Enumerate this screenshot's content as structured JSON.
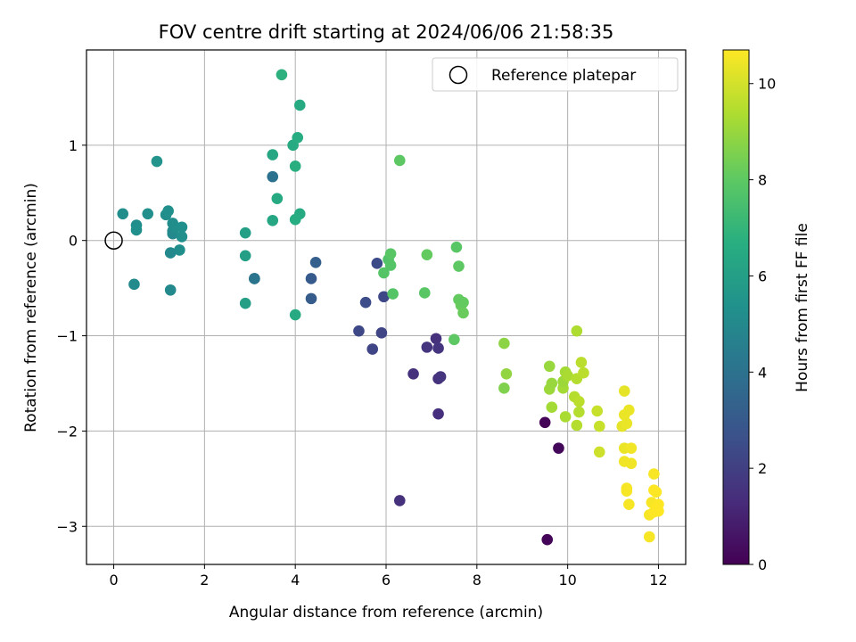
{
  "chart_data": {
    "type": "scatter",
    "title": "FOV centre drift starting at 2024/06/06 21:58:35",
    "xlabel": "Angular distance from reference (arcmin)",
    "ylabel": "Rotation from reference (arcmin)",
    "xlim": [
      -0.6,
      12.6
    ],
    "ylim": [
      -3.4,
      2.0
    ],
    "xticks": [
      "0",
      "2",
      "4",
      "6",
      "8",
      "10",
      "12"
    ],
    "xtick_values": [
      0,
      2,
      4,
      6,
      8,
      10,
      12
    ],
    "yticks": [
      "1",
      "0",
      "−1",
      "−2",
      "−3"
    ],
    "ytick_values": [
      1,
      0,
      -1,
      -2,
      -3
    ],
    "grid": true,
    "legend": {
      "placement": "top-right",
      "entries": [
        "Reference platepar"
      ]
    },
    "reference_point": {
      "x": 0,
      "y": 0
    },
    "colorbar": {
      "label": "Hours from first FF file",
      "range": [
        0,
        10.7
      ],
      "ticks": [
        "0",
        "2",
        "4",
        "6",
        "8",
        "10"
      ],
      "tick_values": [
        0,
        2,
        4,
        6,
        8,
        10
      ],
      "colormap": "viridis"
    },
    "points": [
      {
        "x": 0.2,
        "y": 0.28,
        "c": 5.2
      },
      {
        "x": 0.5,
        "y": 0.16,
        "c": 5.2
      },
      {
        "x": 0.5,
        "y": 0.11,
        "c": 5.3
      },
      {
        "x": 0.75,
        "y": 0.28,
        "c": 5.3
      },
      {
        "x": 0.45,
        "y": -0.46,
        "c": 5.1
      },
      {
        "x": 0.95,
        "y": 0.83,
        "c": 5.5
      },
      {
        "x": 1.15,
        "y": 0.27,
        "c": 5.2
      },
      {
        "x": 1.2,
        "y": 0.31,
        "c": 5.3
      },
      {
        "x": 1.3,
        "y": 0.18,
        "c": 5.2
      },
      {
        "x": 1.3,
        "y": 0.1,
        "c": 5.1
      },
      {
        "x": 1.3,
        "y": 0.07,
        "c": 5.0
      },
      {
        "x": 1.35,
        "y": 0.14,
        "c": 5.2
      },
      {
        "x": 1.5,
        "y": 0.14,
        "c": 5.3
      },
      {
        "x": 1.5,
        "y": 0.04,
        "c": 5.3
      },
      {
        "x": 1.45,
        "y": -0.1,
        "c": 5.2
      },
      {
        "x": 1.25,
        "y": -0.13,
        "c": 5.0
      },
      {
        "x": 1.25,
        "y": -0.52,
        "c": 5.0
      },
      {
        "x": 2.9,
        "y": 0.08,
        "c": 6.0
      },
      {
        "x": 2.9,
        "y": -0.16,
        "c": 6.0
      },
      {
        "x": 2.9,
        "y": -0.66,
        "c": 6.0
      },
      {
        "x": 3.1,
        "y": -0.4,
        "c": 4.0
      },
      {
        "x": 3.1,
        "y": -0.4,
        "c": 4.1
      },
      {
        "x": 3.5,
        "y": 0.67,
        "c": 4.0
      },
      {
        "x": 3.5,
        "y": 0.9,
        "c": 6.3
      },
      {
        "x": 3.5,
        "y": 0.21,
        "c": 6.3
      },
      {
        "x": 3.6,
        "y": 0.44,
        "c": 6.5
      },
      {
        "x": 3.7,
        "y": 1.74,
        "c": 6.8
      },
      {
        "x": 3.95,
        "y": 1.0,
        "c": 6.5
      },
      {
        "x": 4.0,
        "y": 0.78,
        "c": 6.7
      },
      {
        "x": 4.05,
        "y": 1.08,
        "c": 6.6
      },
      {
        "x": 4.1,
        "y": 1.42,
        "c": 6.5
      },
      {
        "x": 4.1,
        "y": 0.28,
        "c": 6.5
      },
      {
        "x": 4.0,
        "y": 0.22,
        "c": 6.6
      },
      {
        "x": 4.0,
        "y": -0.78,
        "c": 6.5
      },
      {
        "x": 4.35,
        "y": -0.4,
        "c": 3.0
      },
      {
        "x": 4.35,
        "y": -0.61,
        "c": 3.1
      },
      {
        "x": 4.45,
        "y": -0.23,
        "c": 3.2
      },
      {
        "x": 5.4,
        "y": -0.95,
        "c": 2.3
      },
      {
        "x": 5.55,
        "y": -0.65,
        "c": 2.5
      },
      {
        "x": 5.7,
        "y": -1.14,
        "c": 2.2
      },
      {
        "x": 5.8,
        "y": -0.24,
        "c": 2.4
      },
      {
        "x": 5.9,
        "y": -0.97,
        "c": 2.2
      },
      {
        "x": 5.95,
        "y": -0.59,
        "c": 2.3
      },
      {
        "x": 5.95,
        "y": -0.34,
        "c": 7.8
      },
      {
        "x": 6.05,
        "y": -0.2,
        "c": 7.7
      },
      {
        "x": 6.1,
        "y": -0.26,
        "c": 7.8
      },
      {
        "x": 6.1,
        "y": -0.14,
        "c": 7.9
      },
      {
        "x": 6.15,
        "y": -0.56,
        "c": 7.8
      },
      {
        "x": 6.3,
        "y": 0.84,
        "c": 8.0
      },
      {
        "x": 6.3,
        "y": -2.73,
        "c": 1.5
      },
      {
        "x": 6.6,
        "y": -1.4,
        "c": 1.5
      },
      {
        "x": 6.85,
        "y": -0.55,
        "c": 7.9
      },
      {
        "x": 6.9,
        "y": -0.15,
        "c": 8.1
      },
      {
        "x": 6.9,
        "y": -1.12,
        "c": 1.6
      },
      {
        "x": 7.1,
        "y": -1.03,
        "c": 1.5
      },
      {
        "x": 7.15,
        "y": -1.13,
        "c": 1.6
      },
      {
        "x": 7.15,
        "y": -1.45,
        "c": 1.5
      },
      {
        "x": 7.2,
        "y": -1.43,
        "c": 1.6
      },
      {
        "x": 7.15,
        "y": -1.82,
        "c": 1.4
      },
      {
        "x": 7.5,
        "y": -1.04,
        "c": 8.0
      },
      {
        "x": 7.55,
        "y": -0.07,
        "c": 7.9
      },
      {
        "x": 7.6,
        "y": -0.27,
        "c": 8.0
      },
      {
        "x": 7.6,
        "y": -0.62,
        "c": 8.1
      },
      {
        "x": 7.65,
        "y": -0.68,
        "c": 8.2
      },
      {
        "x": 7.7,
        "y": -0.65,
        "c": 8.1
      },
      {
        "x": 7.7,
        "y": -0.76,
        "c": 8.2
      },
      {
        "x": 8.6,
        "y": -1.08,
        "c": 8.8
      },
      {
        "x": 8.6,
        "y": -1.55,
        "c": 8.6
      },
      {
        "x": 8.65,
        "y": -1.4,
        "c": 8.9
      },
      {
        "x": 9.5,
        "y": -1.91,
        "c": 0.1
      },
      {
        "x": 9.55,
        "y": -3.14,
        "c": 0.1
      },
      {
        "x": 9.8,
        "y": -2.18,
        "c": 0.2
      },
      {
        "x": 9.6,
        "y": -1.32,
        "c": 9.0
      },
      {
        "x": 9.6,
        "y": -1.56,
        "c": 9.1
      },
      {
        "x": 9.65,
        "y": -1.5,
        "c": 9.0
      },
      {
        "x": 9.65,
        "y": -1.75,
        "c": 9.2
      },
      {
        "x": 9.9,
        "y": -1.55,
        "c": 9.2
      },
      {
        "x": 9.9,
        "y": -1.48,
        "c": 9.1
      },
      {
        "x": 9.95,
        "y": -1.38,
        "c": 9.2
      },
      {
        "x": 9.95,
        "y": -1.85,
        "c": 9.3
      },
      {
        "x": 10.0,
        "y": -1.42,
        "c": 9.3
      },
      {
        "x": 10.15,
        "y": -1.64,
        "c": 9.5
      },
      {
        "x": 10.2,
        "y": -0.95,
        "c": 9.4
      },
      {
        "x": 10.2,
        "y": -1.45,
        "c": 9.5
      },
      {
        "x": 10.25,
        "y": -1.69,
        "c": 9.6
      },
      {
        "x": 10.25,
        "y": -1.8,
        "c": 9.5
      },
      {
        "x": 10.2,
        "y": -1.94,
        "c": 9.5
      },
      {
        "x": 10.3,
        "y": -1.28,
        "c": 9.6
      },
      {
        "x": 10.35,
        "y": -1.39,
        "c": 9.6
      },
      {
        "x": 10.65,
        "y": -1.79,
        "c": 9.8
      },
      {
        "x": 10.7,
        "y": -1.95,
        "c": 9.8
      },
      {
        "x": 10.7,
        "y": -2.22,
        "c": 9.9
      },
      {
        "x": 11.25,
        "y": -1.58,
        "c": 10.3
      },
      {
        "x": 11.2,
        "y": -1.95,
        "c": 10.3
      },
      {
        "x": 11.25,
        "y": -1.83,
        "c": 10.4
      },
      {
        "x": 11.3,
        "y": -1.92,
        "c": 10.4
      },
      {
        "x": 11.35,
        "y": -1.78,
        "c": 10.4
      },
      {
        "x": 11.25,
        "y": -2.18,
        "c": 10.4
      },
      {
        "x": 11.25,
        "y": -2.32,
        "c": 10.5
      },
      {
        "x": 11.4,
        "y": -2.18,
        "c": 10.5
      },
      {
        "x": 11.4,
        "y": -2.34,
        "c": 10.5
      },
      {
        "x": 11.3,
        "y": -2.6,
        "c": 10.6
      },
      {
        "x": 11.3,
        "y": -2.63,
        "c": 10.6
      },
      {
        "x": 11.35,
        "y": -2.77,
        "c": 10.6
      },
      {
        "x": 11.8,
        "y": -3.11,
        "c": 10.6
      },
      {
        "x": 11.8,
        "y": -2.88,
        "c": 10.6
      },
      {
        "x": 11.85,
        "y": -2.75,
        "c": 10.6
      },
      {
        "x": 11.9,
        "y": -2.45,
        "c": 10.6
      },
      {
        "x": 11.9,
        "y": -2.62,
        "c": 10.7
      },
      {
        "x": 11.95,
        "y": -2.64,
        "c": 10.7
      },
      {
        "x": 11.95,
        "y": -2.8,
        "c": 10.7
      },
      {
        "x": 12.0,
        "y": -2.77,
        "c": 10.7
      },
      {
        "x": 12.0,
        "y": -2.84,
        "c": 10.7
      },
      {
        "x": 11.9,
        "y": -2.85,
        "c": 10.7
      }
    ]
  }
}
